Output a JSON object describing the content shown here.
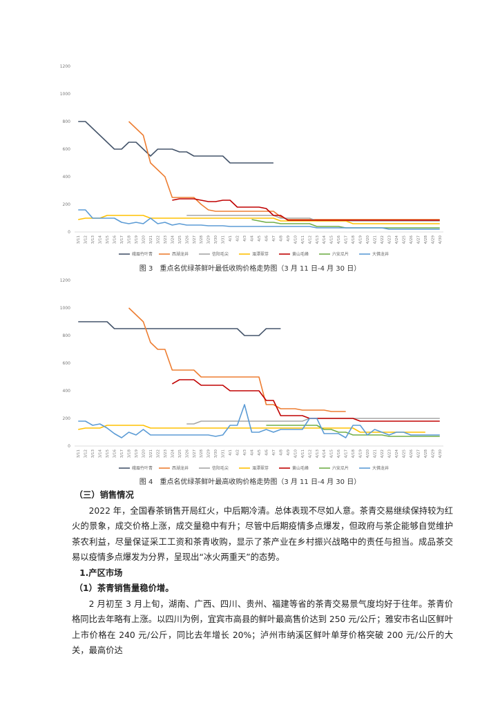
{
  "chart_data": [
    {
      "type": "line",
      "caption": "图 3　重点名优绿茶鲜叶最低收购价格走势图（3 月 11 日-4 月 30 日）",
      "categories": [
        "3/11",
        "3/12",
        "3/13",
        "3/14",
        "3/15",
        "3/16",
        "3/17",
        "3/18",
        "3/19",
        "3/20",
        "3/21",
        "3/22",
        "3/23",
        "3/24",
        "3/25",
        "3/26",
        "3/27",
        "3/28",
        "3/29",
        "3/30",
        "3/31",
        "4/1",
        "4/2",
        "4/3",
        "4/4",
        "4/5",
        "4/6",
        "4/7",
        "4/8",
        "4/9",
        "4/10",
        "4/11",
        "4/12",
        "4/13",
        "4/14",
        "4/15",
        "4/16",
        "4/17",
        "4/18",
        "4/19",
        "4/20",
        "4/21",
        "4/22",
        "4/23",
        "4/24",
        "4/25",
        "4/26",
        "4/27",
        "4/28",
        "4/29",
        "4/30"
      ],
      "ylim": [
        0,
        1200
      ],
      "yticks": [
        0,
        200,
        400,
        600,
        800,
        1000,
        1200
      ],
      "grid": false,
      "legend": "bottom",
      "series": [
        {
          "name": "峨眉竹叶青",
          "color": "#44546a",
          "values": [
            800,
            800,
            750,
            700,
            650,
            600,
            600,
            650,
            650,
            600,
            550,
            600,
            600,
            600,
            580,
            580,
            550,
            550,
            550,
            550,
            550,
            500,
            500,
            500,
            500,
            500,
            500,
            500,
            null,
            null,
            null,
            null,
            null,
            null,
            null,
            null,
            null,
            null,
            null,
            null,
            null,
            null,
            null,
            null,
            null,
            null,
            null,
            null,
            null,
            null,
            null
          ]
        },
        {
          "name": "西湖龙井",
          "color": "#ed7d31",
          "values": [
            null,
            null,
            null,
            null,
            null,
            null,
            null,
            800,
            750,
            700,
            500,
            450,
            400,
            250,
            250,
            250,
            250,
            200,
            160,
            150,
            150,
            150,
            150,
            150,
            150,
            150,
            150,
            150,
            110,
            90,
            90,
            90,
            90,
            90,
            90,
            90,
            90,
            90,
            90,
            90,
            90,
            90,
            90,
            90,
            90,
            90,
            90,
            90,
            90,
            90,
            90
          ]
        },
        {
          "name": "信阳毛尖",
          "color": "#a5a5a5",
          "values": [
            null,
            null,
            null,
            null,
            null,
            null,
            null,
            null,
            null,
            null,
            null,
            null,
            null,
            null,
            null,
            120,
            120,
            120,
            120,
            120,
            120,
            120,
            120,
            120,
            120,
            120,
            120,
            120,
            100,
            100,
            100,
            100,
            100,
            80,
            80,
            80,
            80,
            80,
            80,
            80,
            80,
            80,
            80,
            80,
            80,
            80,
            80,
            80,
            80,
            80,
            80
          ]
        },
        {
          "name": "湄潭翠芽",
          "color": "#ffc000",
          "values": [
            90,
            100,
            100,
            100,
            120,
            120,
            120,
            120,
            120,
            120,
            100,
            100,
            100,
            100,
            100,
            100,
            100,
            100,
            100,
            100,
            100,
            100,
            100,
            100,
            100,
            100,
            100,
            100,
            80,
            80,
            80,
            80,
            80,
            80,
            80,
            80,
            80,
            80,
            60,
            60,
            60,
            60,
            60,
            60,
            60,
            60,
            60,
            60,
            60,
            60,
            60
          ]
        },
        {
          "name": "黄山毛峰",
          "color": "#c00000",
          "values": [
            null,
            null,
            null,
            null,
            null,
            null,
            null,
            null,
            null,
            null,
            null,
            null,
            null,
            230,
            240,
            240,
            240,
            230,
            220,
            220,
            230,
            230,
            180,
            180,
            180,
            180,
            170,
            120,
            120,
            85,
            85,
            85,
            85,
            85,
            85,
            85,
            85,
            85,
            85,
            85,
            85,
            85,
            85,
            85,
            85,
            85,
            85,
            85,
            85,
            85,
            85
          ]
        },
        {
          "name": "六安瓜片",
          "color": "#70ad47",
          "values": [
            null,
            null,
            null,
            null,
            null,
            null,
            null,
            null,
            null,
            null,
            null,
            null,
            null,
            null,
            null,
            null,
            null,
            null,
            null,
            null,
            null,
            null,
            null,
            null,
            90,
            80,
            70,
            70,
            60,
            60,
            60,
            60,
            60,
            40,
            40,
            40,
            40,
            30,
            30,
            30,
            30,
            30,
            30,
            30,
            30,
            30,
            30,
            30,
            30,
            30,
            30
          ]
        },
        {
          "name": "大佛龙井",
          "color": "#5b9bd5",
          "values": [
            160,
            160,
            100,
            100,
            100,
            100,
            70,
            60,
            70,
            60,
            100,
            60,
            70,
            50,
            60,
            50,
            50,
            50,
            45,
            45,
            45,
            40,
            40,
            40,
            40,
            40,
            40,
            40,
            40,
            40,
            40,
            40,
            40,
            30,
            30,
            30,
            30,
            30,
            30,
            30,
            30,
            30,
            30,
            20,
            20,
            20,
            20,
            20,
            20,
            20,
            20
          ]
        }
      ]
    },
    {
      "type": "line",
      "caption": "图 4　重点名优绿茶鲜叶最高收购价格走势图（3 月 11 日-4 月 30 日）",
      "categories": [
        "3/11",
        "3/12",
        "3/13",
        "3/14",
        "3/15",
        "3/16",
        "3/17",
        "3/18",
        "3/19",
        "3/20",
        "3/21",
        "3/22",
        "3/23",
        "3/24",
        "3/25",
        "3/26",
        "3/27",
        "3/28",
        "3/29",
        "3/30",
        "3/31",
        "4/1",
        "4/2",
        "4/3",
        "4/4",
        "4/5",
        "4/6",
        "4/7",
        "4/8",
        "4/9",
        "4/10",
        "4/11",
        "4/12",
        "4/13",
        "4/14",
        "4/15",
        "4/16",
        "4/17",
        "4/18",
        "4/19",
        "4/20",
        "4/21",
        "4/22",
        "4/23",
        "4/24",
        "4/25",
        "4/26",
        "4/27",
        "4/28",
        "4/29",
        "4/30"
      ],
      "ylim": [
        0,
        1200
      ],
      "yticks": [
        0,
        200,
        400,
        600,
        800,
        1000,
        1200
      ],
      "grid": false,
      "legend": "bottom",
      "series": [
        {
          "name": "峨眉竹叶青",
          "color": "#44546a",
          "values": [
            900,
            900,
            900,
            900,
            900,
            850,
            850,
            850,
            850,
            850,
            850,
            850,
            850,
            850,
            850,
            850,
            850,
            850,
            850,
            850,
            850,
            850,
            850,
            800,
            800,
            800,
            850,
            850,
            850,
            null,
            null,
            null,
            null,
            null,
            null,
            null,
            null,
            null,
            null,
            null,
            null,
            null,
            null,
            null,
            null,
            null,
            null,
            null,
            null,
            null,
            null
          ]
        },
        {
          "name": "西湖龙井",
          "color": "#ed7d31",
          "values": [
            null,
            null,
            null,
            null,
            null,
            null,
            null,
            1000,
            950,
            900,
            750,
            700,
            700,
            550,
            550,
            550,
            550,
            500,
            500,
            500,
            500,
            500,
            500,
            500,
            500,
            500,
            300,
            300,
            270,
            270,
            270,
            260,
            260,
            260,
            260,
            250,
            250,
            250,
            null,
            null,
            null,
            null,
            null,
            null,
            null,
            null,
            null,
            null,
            null,
            null,
            null
          ]
        },
        {
          "name": "信阳毛尖",
          "color": "#a5a5a5",
          "values": [
            null,
            null,
            null,
            null,
            null,
            null,
            null,
            null,
            null,
            null,
            null,
            null,
            null,
            null,
            null,
            160,
            160,
            180,
            180,
            180,
            180,
            180,
            180,
            180,
            180,
            180,
            180,
            180,
            180,
            180,
            180,
            180,
            200,
            200,
            200,
            200,
            200,
            200,
            200,
            200,
            200,
            200,
            200,
            200,
            200,
            200,
            200,
            200,
            200,
            200,
            200
          ]
        },
        {
          "name": "湄潭翠芽",
          "color": "#ffc000",
          "values": [
            120,
            130,
            130,
            130,
            150,
            150,
            150,
            150,
            150,
            150,
            130,
            130,
            130,
            130,
            130,
            130,
            130,
            130,
            130,
            130,
            130,
            130,
            130,
            130,
            130,
            130,
            130,
            130,
            130,
            130,
            130,
            130,
            130,
            130,
            130,
            130,
            130,
            130,
            130,
            100,
            100,
            100,
            100,
            100,
            100,
            100,
            100,
            100,
            100,
            null,
            null
          ]
        },
        {
          "name": "黄山毛峰",
          "color": "#c00000",
          "values": [
            null,
            null,
            null,
            null,
            null,
            null,
            null,
            null,
            null,
            null,
            null,
            null,
            null,
            450,
            480,
            480,
            480,
            440,
            440,
            440,
            440,
            400,
            400,
            400,
            400,
            400,
            330,
            330,
            220,
            220,
            220,
            220,
            200,
            200,
            200,
            200,
            200,
            200,
            200,
            180,
            180,
            180,
            180,
            180,
            180,
            180,
            180,
            180,
            180,
            180,
            180
          ]
        },
        {
          "name": "六安瓜片",
          "color": "#70ad47",
          "values": [
            null,
            null,
            null,
            null,
            null,
            null,
            null,
            null,
            null,
            null,
            null,
            null,
            null,
            null,
            null,
            null,
            null,
            null,
            null,
            null,
            null,
            null,
            null,
            null,
            null,
            null,
            150,
            150,
            150,
            150,
            150,
            150,
            150,
            150,
            120,
            120,
            100,
            100,
            80,
            80,
            80,
            80,
            80,
            70,
            70,
            70,
            70,
            70,
            70,
            70,
            70
          ]
        },
        {
          "name": "大佛龙井",
          "color": "#5b9bd5",
          "values": [
            180,
            180,
            150,
            160,
            130,
            90,
            60,
            100,
            80,
            120,
            80,
            80,
            80,
            80,
            80,
            80,
            80,
            80,
            80,
            70,
            80,
            150,
            150,
            300,
            100,
            100,
            120,
            100,
            120,
            120,
            120,
            120,
            200,
            200,
            90,
            90,
            90,
            60,
            150,
            150,
            80,
            120,
            100,
            80,
            100,
            100,
            80,
            80,
            80,
            80,
            80
          ]
        }
      ]
    }
  ],
  "document": {
    "section_title": "（三）销售情况",
    "paragraph_1": "2022 年，全国春茶销售开局红火，中后期冷清。总体表现不尽如人意。茶青交易继续保持较为红火的景象，成交价格上涨，成交量稳中有升；尽管中后期疫情多点爆发，但政府与茶企能够自觉维护茶农利益，尽量保证采工工资和茶青收购，显示了茶产业在乡村振兴战略中的责任与担当。成品茶交易以疫情多点爆发为分界，呈现出“冰火两重天”的态势。",
    "subsection_title": "1.产区市场",
    "item_title": "（1）茶青销售量稳价增。",
    "paragraph_2": "2 月初至 3 月上旬，湖南、广西、四川、贵州、福建等省的茶青交易景气度均好于往年。茶青价格同比去年略有上涨。以四川为例，宜宾市高县的鲜叶最高售价达到 250 元/公斤；雅安市名山区鲜叶上市价格在 240 元/公斤，同比去年增长 20%；泸州市纳溪区鲜叶单芽价格突破 200 元/公斤的大关，最高价达"
  }
}
